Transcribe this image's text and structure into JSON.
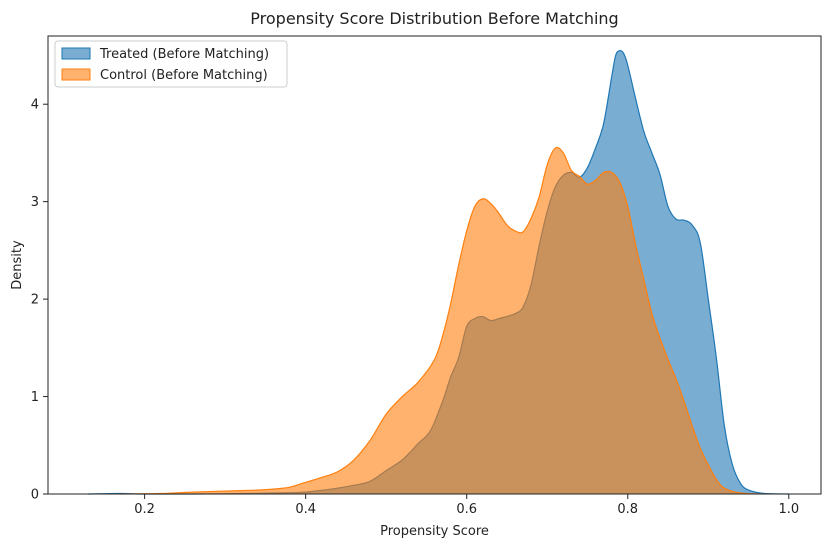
{
  "chart_data": {
    "type": "area",
    "title": "Propensity Score Distribution Before Matching",
    "xlabel": "Propensity Score",
    "ylabel": "Density",
    "xlim": [
      0.08,
      1.04
    ],
    "ylim": [
      0,
      4.7
    ],
    "xticks": [
      0.2,
      0.4,
      0.6,
      0.8,
      1.0
    ],
    "xtick_labels": [
      "0.2",
      "0.4",
      "0.6",
      "0.8",
      "1.0"
    ],
    "yticks": [
      0,
      1,
      2,
      3,
      4
    ],
    "ytick_labels": [
      "0",
      "1",
      "2",
      "3",
      "4"
    ],
    "grid": false,
    "legend": {
      "position": "top-left"
    },
    "series": [
      {
        "name": "Treated (Before Matching)",
        "color": "#1f77b4",
        "fill": "#74add6",
        "alpha": 0.6,
        "points": [
          [
            0.13,
            0.0
          ],
          [
            0.17,
            0.005
          ],
          [
            0.2,
            0.0
          ],
          [
            0.26,
            0.0
          ],
          [
            0.3,
            0.003
          ],
          [
            0.36,
            0.01
          ],
          [
            0.4,
            0.02
          ],
          [
            0.44,
            0.06
          ],
          [
            0.46,
            0.09
          ],
          [
            0.48,
            0.13
          ],
          [
            0.5,
            0.24
          ],
          [
            0.52,
            0.35
          ],
          [
            0.54,
            0.52
          ],
          [
            0.555,
            0.65
          ],
          [
            0.57,
            0.95
          ],
          [
            0.58,
            1.2
          ],
          [
            0.59,
            1.4
          ],
          [
            0.6,
            1.72
          ],
          [
            0.61,
            1.8
          ],
          [
            0.62,
            1.82
          ],
          [
            0.63,
            1.78
          ],
          [
            0.64,
            1.8
          ],
          [
            0.66,
            1.85
          ],
          [
            0.67,
            1.92
          ],
          [
            0.68,
            2.15
          ],
          [
            0.69,
            2.55
          ],
          [
            0.7,
            2.9
          ],
          [
            0.71,
            3.15
          ],
          [
            0.72,
            3.27
          ],
          [
            0.73,
            3.3
          ],
          [
            0.74,
            3.25
          ],
          [
            0.75,
            3.35
          ],
          [
            0.76,
            3.55
          ],
          [
            0.77,
            3.8
          ],
          [
            0.78,
            4.28
          ],
          [
            0.785,
            4.5
          ],
          [
            0.79,
            4.55
          ],
          [
            0.795,
            4.52
          ],
          [
            0.8,
            4.4
          ],
          [
            0.81,
            4.05
          ],
          [
            0.82,
            3.72
          ],
          [
            0.83,
            3.5
          ],
          [
            0.84,
            3.28
          ],
          [
            0.85,
            2.95
          ],
          [
            0.86,
            2.82
          ],
          [
            0.87,
            2.81
          ],
          [
            0.88,
            2.76
          ],
          [
            0.89,
            2.58
          ],
          [
            0.9,
            2.0
          ],
          [
            0.91,
            1.4
          ],
          [
            0.92,
            0.7
          ],
          [
            0.93,
            0.3
          ],
          [
            0.94,
            0.11
          ],
          [
            0.95,
            0.04
          ],
          [
            0.97,
            0.005
          ],
          [
            1.0,
            0.0
          ]
        ]
      },
      {
        "name": "Control (Before Matching)",
        "color": "#ff7f0e",
        "fill": "#ffb06b",
        "alpha": 0.6,
        "points": [
          [
            0.17,
            0.0
          ],
          [
            0.22,
            0.005
          ],
          [
            0.26,
            0.02
          ],
          [
            0.3,
            0.03
          ],
          [
            0.34,
            0.04
          ],
          [
            0.36,
            0.05
          ],
          [
            0.38,
            0.07
          ],
          [
            0.4,
            0.12
          ],
          [
            0.42,
            0.17
          ],
          [
            0.44,
            0.23
          ],
          [
            0.46,
            0.35
          ],
          [
            0.48,
            0.55
          ],
          [
            0.5,
            0.82
          ],
          [
            0.52,
            1.0
          ],
          [
            0.54,
            1.15
          ],
          [
            0.56,
            1.38
          ],
          [
            0.57,
            1.62
          ],
          [
            0.58,
            1.95
          ],
          [
            0.59,
            2.35
          ],
          [
            0.6,
            2.7
          ],
          [
            0.61,
            2.95
          ],
          [
            0.62,
            3.03
          ],
          [
            0.63,
            2.98
          ],
          [
            0.64,
            2.88
          ],
          [
            0.65,
            2.76
          ],
          [
            0.66,
            2.7
          ],
          [
            0.67,
            2.69
          ],
          [
            0.68,
            2.83
          ],
          [
            0.69,
            3.05
          ],
          [
            0.7,
            3.38
          ],
          [
            0.71,
            3.55
          ],
          [
            0.72,
            3.5
          ],
          [
            0.73,
            3.32
          ],
          [
            0.74,
            3.26
          ],
          [
            0.75,
            3.18
          ],
          [
            0.76,
            3.22
          ],
          [
            0.77,
            3.3
          ],
          [
            0.78,
            3.3
          ],
          [
            0.79,
            3.2
          ],
          [
            0.8,
            2.95
          ],
          [
            0.81,
            2.55
          ],
          [
            0.82,
            2.2
          ],
          [
            0.83,
            1.85
          ],
          [
            0.84,
            1.6
          ],
          [
            0.85,
            1.38
          ],
          [
            0.86,
            1.18
          ],
          [
            0.87,
            0.95
          ],
          [
            0.88,
            0.7
          ],
          [
            0.89,
            0.47
          ],
          [
            0.9,
            0.3
          ],
          [
            0.91,
            0.15
          ],
          [
            0.92,
            0.06
          ],
          [
            0.94,
            0.01
          ],
          [
            0.97,
            0.0
          ]
        ]
      }
    ]
  }
}
